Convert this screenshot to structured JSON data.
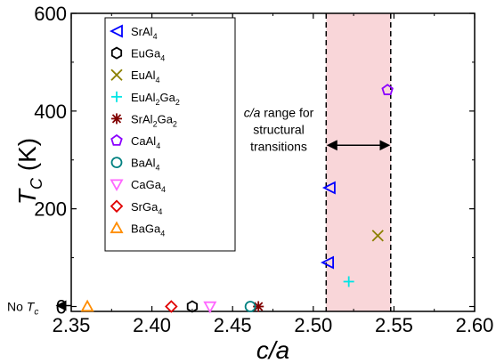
{
  "chart_data": {
    "type": "scatter",
    "title": "",
    "xlabel": "c/a",
    "ylabel_base": "T",
    "ylabel_sub": "C",
    "ylabel_unit": " (K)",
    "xlim": [
      2.35,
      2.6
    ],
    "ylim": [
      -10,
      600
    ],
    "xticks": [
      2.35,
      2.4,
      2.45,
      2.5,
      2.55,
      2.6
    ],
    "xtick_labels": [
      "2.35",
      "2.40",
      "2.45",
      "2.50",
      "2.55",
      "2.60"
    ],
    "yticks": [
      0,
      200,
      400,
      600
    ],
    "ytick_labels": [
      "0",
      "200",
      "400",
      "600"
    ],
    "grid": false,
    "legend_position": "upper-left",
    "series": [
      {
        "name": "SrAl4",
        "label_parts": [
          [
            "SrAl",
            false
          ],
          [
            "4",
            true
          ]
        ],
        "marker": "triangle-left",
        "color": "#0000ff",
        "points": [
          {
            "x": 2.51,
            "y": 243
          },
          {
            "x": 2.509,
            "y": 90
          }
        ]
      },
      {
        "name": "EuGa4",
        "label_parts": [
          [
            "EuGa",
            false
          ],
          [
            "4",
            true
          ]
        ],
        "marker": "hexagon",
        "color": "#000000",
        "points": [
          {
            "x": 2.425,
            "y": 0
          }
        ]
      },
      {
        "name": "EuAl4",
        "label_parts": [
          [
            "EuAl",
            false
          ],
          [
            "4",
            true
          ]
        ],
        "marker": "x",
        "color": "#8b8000",
        "points": [
          {
            "x": 2.54,
            "y": 145
          }
        ]
      },
      {
        "name": "EuAl2Ga2",
        "label_parts": [
          [
            "EuAl",
            false
          ],
          [
            "2",
            true
          ],
          [
            "Ga",
            false
          ],
          [
            "2",
            true
          ]
        ],
        "marker": "plus",
        "color": "#00e5e5",
        "points": [
          {
            "x": 2.522,
            "y": 51
          }
        ]
      },
      {
        "name": "SrAl2Ga2",
        "label_parts": [
          [
            "SrAl",
            false
          ],
          [
            "2",
            true
          ],
          [
            "Ga",
            false
          ],
          [
            "2",
            true
          ]
        ],
        "marker": "asterisk",
        "color": "#800000",
        "points": [
          {
            "x": 2.466,
            "y": 0
          }
        ]
      },
      {
        "name": "CaAl4",
        "label_parts": [
          [
            "CaAl",
            false
          ],
          [
            "4",
            true
          ]
        ],
        "marker": "pentagon",
        "color": "#8b00ff",
        "points": [
          {
            "x": 2.546,
            "y": 443
          }
        ]
      },
      {
        "name": "BaAl4",
        "label_parts": [
          [
            "BaAl",
            false
          ],
          [
            "4",
            true
          ]
        ],
        "marker": "circle",
        "color": "#008080",
        "points": [
          {
            "x": 2.461,
            "y": 0
          }
        ]
      },
      {
        "name": "CaGa4",
        "label_parts": [
          [
            "CaGa",
            false
          ],
          [
            "4",
            true
          ]
        ],
        "marker": "triangle-down",
        "color": "#ff66ff",
        "points": [
          {
            "x": 2.436,
            "y": 0
          }
        ]
      },
      {
        "name": "SrGa4",
        "label_parts": [
          [
            "SrGa",
            false
          ],
          [
            "4",
            true
          ]
        ],
        "marker": "diamond",
        "color": "#e00000",
        "points": [
          {
            "x": 2.412,
            "y": 0
          }
        ]
      },
      {
        "name": "BaGa4",
        "label_parts": [
          [
            "BaGa",
            false
          ],
          [
            "4",
            true
          ]
        ],
        "marker": "triangle-up",
        "color": "#ff8c00",
        "points": [
          {
            "x": 2.36,
            "y": 0
          }
        ]
      }
    ],
    "shaded_region": {
      "x_from": 2.508,
      "x_to": 2.548,
      "color": "#f9d6d9",
      "label_line1_italic": "c/a",
      "label_line1_rest": " range for",
      "label_line2": "structural",
      "label_line3": "transitions",
      "arrow_y": 330
    },
    "no_tc_label_base": "No T",
    "no_tc_label_sub": "c"
  }
}
